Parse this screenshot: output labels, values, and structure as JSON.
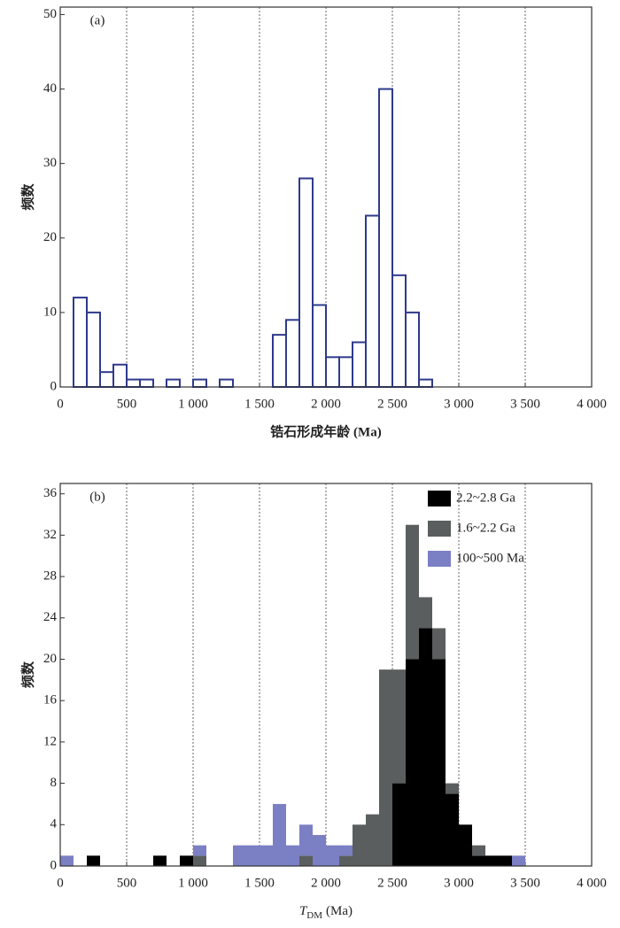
{
  "chart_data": [
    {
      "type": "histogram",
      "panel_label": "(a)",
      "y_label": "频数",
      "x_label": "锆石形成年龄 (Ma)",
      "bins": [
        0,
        100,
        200,
        300,
        400,
        500,
        600,
        700,
        800,
        900,
        1000,
        1100,
        1200,
        1300,
        1400,
        1500,
        1600,
        1700,
        1800,
        1900,
        2000,
        2100,
        2200,
        2300,
        2400,
        2500,
        2600,
        2700,
        2800
      ],
      "values": [
        0,
        12,
        10,
        2,
        3,
        1,
        1,
        0,
        1,
        0,
        1,
        0,
        1,
        0,
        0,
        0,
        7,
        9,
        28,
        11,
        4,
        4,
        6,
        23,
        40,
        15,
        10,
        1
      ],
      "color": "#2e3a8c",
      "fill": "#ffffff",
      "xlim": [
        0,
        4000
      ],
      "xticks": [
        0,
        500,
        {
          "value": 1000,
          "label": "1 000"
        },
        {
          "value": 1500,
          "label": "1 500"
        },
        {
          "value": 2000,
          "label": "2 000"
        },
        {
          "value": 2500,
          "label": "2 500"
        },
        {
          "value": 3000,
          "label": "3 000"
        },
        {
          "value": 3500,
          "label": "3 500"
        },
        {
          "value": 4000,
          "label": "4 000"
        }
      ],
      "ylim": [
        0,
        51
      ],
      "yticks": [
        0,
        10,
        20,
        30,
        40,
        50
      ],
      "grid": "x"
    },
    {
      "type": "histogram",
      "stacked": true,
      "panel_label": "(b)",
      "y_label": "频数",
      "x_label": "T",
      "x_label_sub": "DM",
      "x_label_unit": "(Ma)",
      "legend": "upper right",
      "bins": [
        0,
        100,
        200,
        300,
        400,
        500,
        600,
        700,
        800,
        900,
        1000,
        1100,
        1200,
        1300,
        1400,
        1500,
        1600,
        1700,
        1800,
        1900,
        2000,
        2100,
        2200,
        2300,
        2400,
        2500,
        2600,
        2700,
        2800,
        2900,
        3000,
        3100,
        3200,
        3300,
        3400,
        3500
      ],
      "series": [
        {
          "name": "2.2~2.8 Ga",
          "color": "#000000",
          "values": [
            0,
            0,
            1,
            0,
            0,
            0,
            0,
            1,
            0,
            1,
            0,
            0,
            0,
            0,
            0,
            0,
            0,
            0,
            0,
            0,
            0,
            0,
            0,
            0,
            0,
            8,
            20,
            23,
            20,
            7,
            4,
            1,
            1,
            1,
            0
          ]
        },
        {
          "name": "1.6~2.2 Ga",
          "color": "#5a5e5e",
          "values": [
            0,
            0,
            0,
            0,
            0,
            0,
            0,
            0,
            0,
            0,
            1,
            0,
            0,
            0,
            0,
            0,
            0,
            0,
            1,
            0,
            0,
            1,
            4,
            5,
            19,
            11,
            13,
            3,
            3,
            1,
            0,
            1,
            0,
            0,
            0
          ]
        },
        {
          "name": "100~500 Ma",
          "color": "#7b7fc4",
          "values": [
            1,
            0,
            0,
            0,
            0,
            0,
            0,
            0,
            0,
            0,
            1,
            0,
            0,
            2,
            2,
            2,
            6,
            2,
            3,
            3,
            2,
            1,
            0,
            0,
            0,
            0,
            0,
            0,
            0,
            0,
            0,
            0,
            0,
            0,
            1
          ]
        }
      ],
      "xlim": [
        0,
        4000
      ],
      "xticks": [
        0,
        500,
        {
          "value": 1000,
          "label": "1 000"
        },
        {
          "value": 1500,
          "label": "1 500"
        },
        {
          "value": 2000,
          "label": "2 000"
        },
        {
          "value": 2500,
          "label": "2 500"
        },
        {
          "value": 3000,
          "label": "3 000"
        },
        {
          "value": 3500,
          "label": "3 500"
        },
        {
          "value": 4000,
          "label": "4 000"
        }
      ],
      "ylim": [
        0,
        37
      ],
      "yticks": [
        0,
        4,
        8,
        12,
        16,
        20,
        24,
        28,
        32,
        36
      ],
      "grid": "x"
    }
  ]
}
